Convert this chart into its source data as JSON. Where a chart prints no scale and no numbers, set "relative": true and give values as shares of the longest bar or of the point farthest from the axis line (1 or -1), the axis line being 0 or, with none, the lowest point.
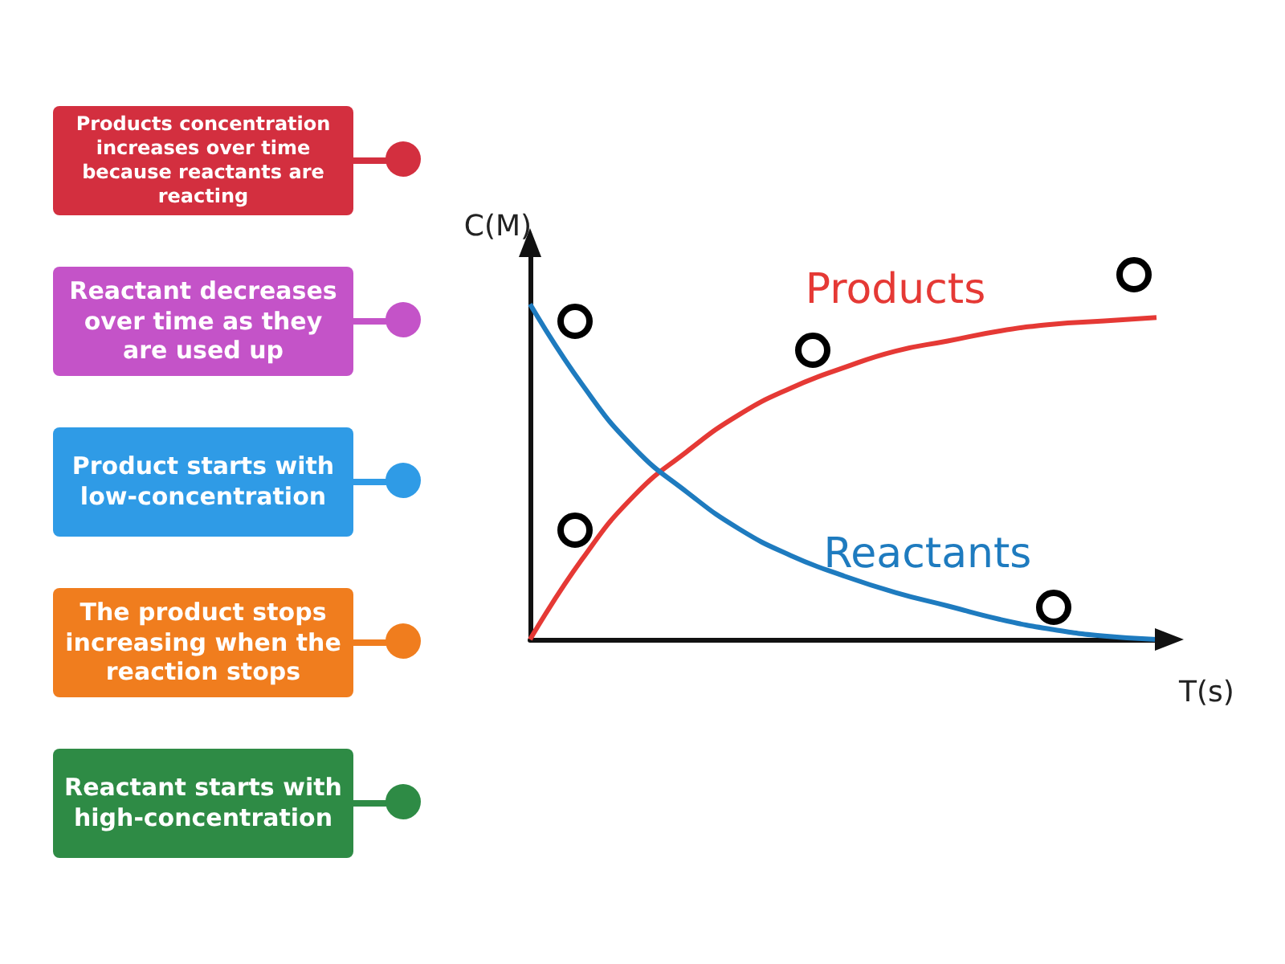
{
  "chart_data": {
    "type": "line",
    "relative": true,
    "xlabel": "T(s)",
    "ylabel": "C(M)",
    "categories": [
      null,
      null,
      null,
      null,
      null,
      null,
      null,
      null,
      null,
      null,
      null,
      null,
      null
    ],
    "series": [
      {
        "name": "Products",
        "color": "#e53935",
        "values": [
          0,
          0.24,
          0.43,
          0.56,
          0.67,
          0.75,
          0.81,
          0.86,
          0.89,
          0.92,
          0.94,
          0.95,
          0.96
        ]
      },
      {
        "name": "Reactants",
        "color": "#1e7bbf",
        "values": [
          1,
          0.76,
          0.57,
          0.44,
          0.33,
          0.25,
          0.19,
          0.14,
          0.1,
          0.06,
          0.03,
          0.01,
          0
        ]
      }
    ],
    "marker": "none",
    "grid": false,
    "legend": false,
    "annotations": [
      "Products concentration increases over time because reactants are reacting",
      "Reactant decreases over time as they are used up",
      "Product starts with low-concentration",
      "The product stops increasing when the reaction stops",
      "Reactant starts with high-concentration"
    ]
  }
}
